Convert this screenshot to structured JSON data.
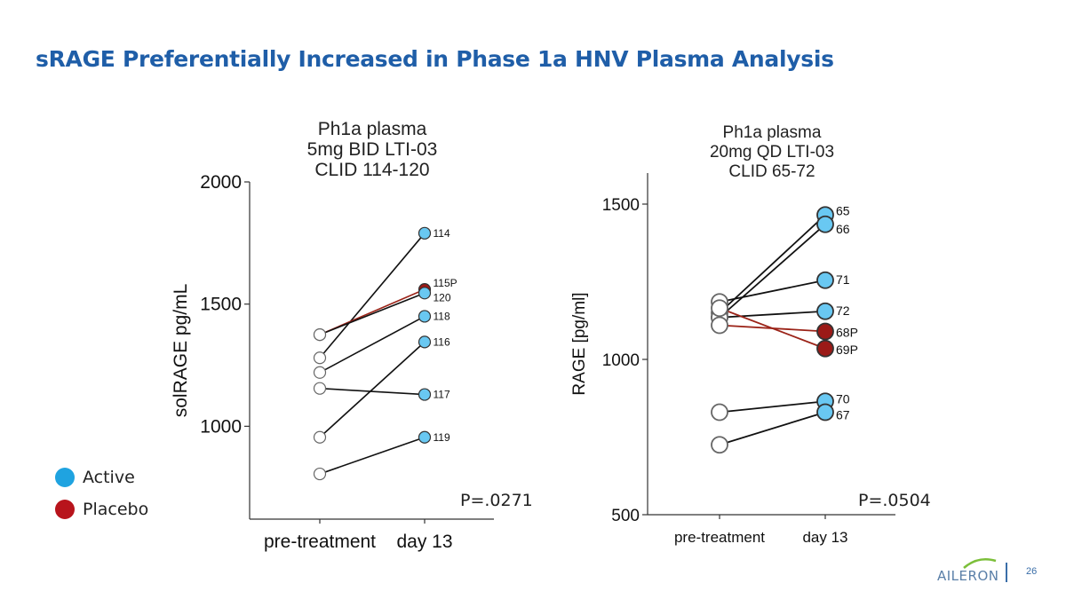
{
  "slide": {
    "title": "sRAGE Preferentially Increased in Phase 1a HNV Plasma Analysis",
    "page_number": "26",
    "logo_text": "AILERON"
  },
  "legend": [
    {
      "label": "Active",
      "color": "#1fa3e0"
    },
    {
      "label": "Placebo",
      "color": "#b8141c"
    }
  ],
  "colors": {
    "active": "#69c8f2",
    "placebo": "#9b1a17",
    "open": "#ffffff",
    "line": "#111111",
    "placebo_line": "#9b2318",
    "title_blue": "#1f5ea8"
  },
  "chart_data": [
    {
      "type": "line",
      "title_lines": [
        "Ph1a plasma",
        "5mg BID LTI-03",
        "CLID 114-120"
      ],
      "ylabel": "solRAGE pg/mL",
      "categories": [
        "pre-treatment",
        "day 13"
      ],
      "ylim": [
        620,
        2000
      ],
      "yticks": [
        1000,
        1500,
        2000
      ],
      "p_value": "P=.0271",
      "series": [
        {
          "name": "114",
          "values": [
            1280,
            1790
          ],
          "group": "active"
        },
        {
          "name": "115P",
          "values": [
            1375,
            1560
          ],
          "group": "placebo"
        },
        {
          "name": "120",
          "values": [
            1375,
            1545
          ],
          "group": "active"
        },
        {
          "name": "118",
          "values": [
            1220,
            1450
          ],
          "group": "active"
        },
        {
          "name": "116",
          "values": [
            955,
            1345
          ],
          "group": "active"
        },
        {
          "name": "117",
          "values": [
            1155,
            1130
          ],
          "group": "active"
        },
        {
          "name": "119",
          "values": [
            805,
            955
          ],
          "group": "active"
        }
      ]
    },
    {
      "type": "line",
      "title_lines": [
        "Ph1a plasma",
        "20mg QD LTI-03",
        "CLID 65-72"
      ],
      "ylabel": "RAGE [pg/ml]",
      "categories": [
        "pre-treatment",
        "day 13"
      ],
      "ylim": [
        500,
        1600
      ],
      "yticks": [
        500,
        1000,
        1500
      ],
      "p_value": "P=.0504",
      "series": [
        {
          "name": "65",
          "values": [
            1150,
            1465
          ],
          "group": "active"
        },
        {
          "name": "66",
          "values": [
            1135,
            1435
          ],
          "group": "active"
        },
        {
          "name": "71",
          "values": [
            1185,
            1255
          ],
          "group": "active"
        },
        {
          "name": "72",
          "values": [
            1135,
            1155
          ],
          "group": "active"
        },
        {
          "name": "68P",
          "values": [
            1110,
            1090
          ],
          "group": "placebo"
        },
        {
          "name": "69P",
          "values": [
            1165,
            1035
          ],
          "group": "placebo"
        },
        {
          "name": "70",
          "values": [
            830,
            865
          ],
          "group": "active"
        },
        {
          "name": "67",
          "values": [
            725,
            830
          ],
          "group": "active"
        }
      ]
    }
  ]
}
